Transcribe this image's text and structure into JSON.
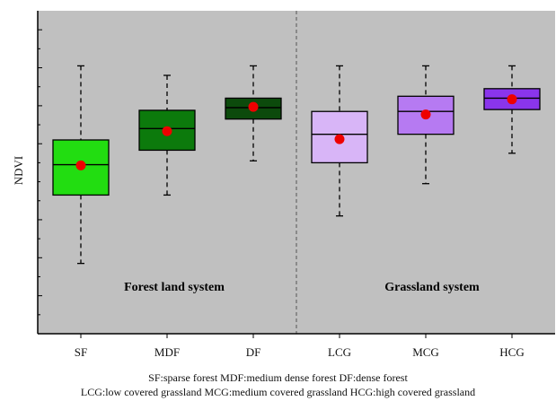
{
  "chart_data": {
    "type": "box",
    "ylabel": "NDVI",
    "categories": [
      "SF",
      "MDF",
      "DF",
      "LCG",
      "MCG",
      "HCG"
    ],
    "boxes": [
      {
        "category": "SF",
        "whisker_low": 0.285,
        "q1": 0.465,
        "median": 0.545,
        "q3": 0.61,
        "whisker_high": 0.805,
        "mean": 0.543,
        "color": "#22dd11"
      },
      {
        "category": "MDF",
        "whisker_low": 0.465,
        "q1": 0.583,
        "median": 0.64,
        "q3": 0.688,
        "whisker_high": 0.78,
        "mean": 0.633,
        "color": "#0c7a0c"
      },
      {
        "category": "DF",
        "whisker_low": 0.555,
        "q1": 0.665,
        "median": 0.695,
        "q3": 0.72,
        "whisker_high": 0.805,
        "mean": 0.697,
        "color": "#0c4a0c"
      },
      {
        "category": "LCG",
        "whisker_low": 0.41,
        "q1": 0.55,
        "median": 0.625,
        "q3": 0.685,
        "whisker_high": 0.805,
        "mean": 0.612,
        "color": "#d8b5f7"
      },
      {
        "category": "MCG",
        "whisker_low": 0.495,
        "q1": 0.625,
        "median": 0.685,
        "q3": 0.725,
        "whisker_high": 0.805,
        "mean": 0.677,
        "color": "#b67af2"
      },
      {
        "category": "HCG",
        "whisker_low": 0.575,
        "q1": 0.69,
        "median": 0.72,
        "q3": 0.745,
        "whisker_high": 0.805,
        "mean": 0.717,
        "color": "#8a35ec"
      }
    ],
    "ylim": [
      0.1,
      0.95
    ],
    "groups": [
      {
        "label": "Forest land system",
        "categories": [
          "SF",
          "MDF",
          "DF"
        ]
      },
      {
        "label": "Grassland system",
        "categories": [
          "LCG",
          "MCG",
          "HCG"
        ]
      }
    ],
    "grid": false,
    "background": "#c0c0c0",
    "mean_marker_color": "#ee0000",
    "divider_after": "DF"
  },
  "footnotes": {
    "line1": "SF:sparse forest   MDF:medium dense forest   DF:dense forest",
    "line2": "LCG:low covered grassland   MCG:medium covered grassland   HCG:high covered grassland"
  }
}
